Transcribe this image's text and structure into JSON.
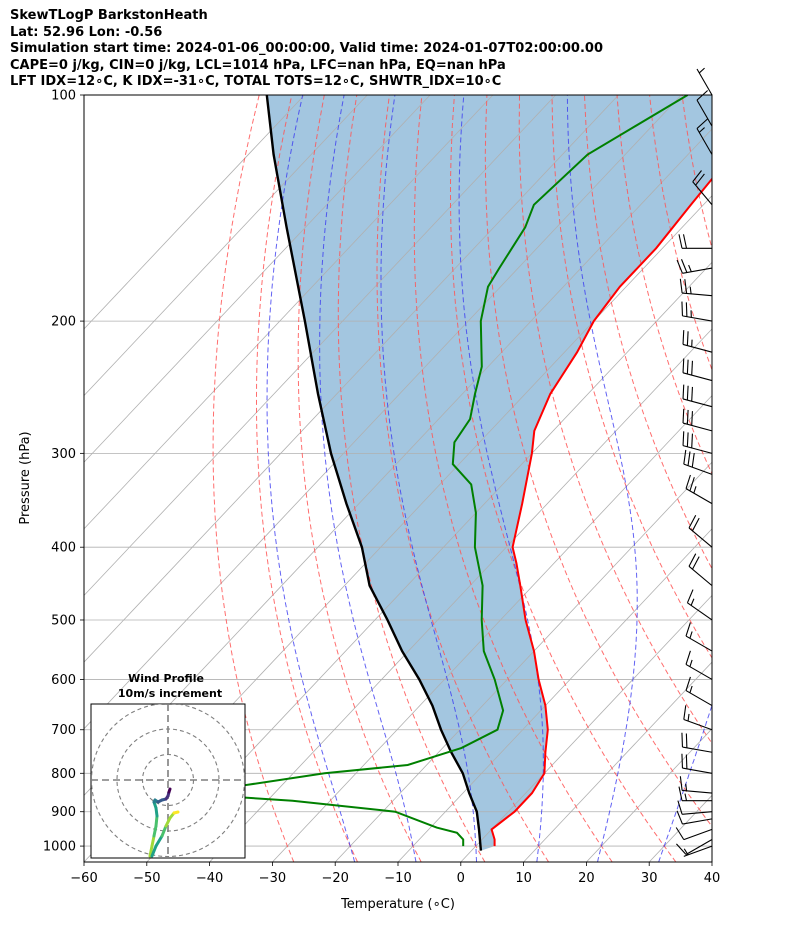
{
  "chart_data": {
    "type": "skewt-logp",
    "title_lines": [
      "SkewTLogP BarkstonHeath",
      "Lat: 52.96   Lon: -0.56",
      "Simulation start time: 2024-01-06_00:00:00, Valid time: 2024-01-07T02:00:00.00",
      "CAPE=0 j/kg, CIN=0 j/kg, LCL=1014 hPa, LFC=nan hPa, EQ=nan hPa",
      "LFT IDX=12∘C, K IDX=-31∘C, TOTAL TOTS=12∘C, SHWTR_IDX=10∘C"
    ],
    "xlabel": "Temperature (∘C)",
    "ylabel": "Pressure (hPa)",
    "xlim": [
      -60,
      40
    ],
    "ylim": [
      1050,
      100
    ],
    "x_ticks": [
      "−60",
      "−50",
      "−40",
      "−30",
      "−20",
      "−10",
      "0",
      "10",
      "20",
      "30",
      "40"
    ],
    "x_tick_values": [
      -60,
      -50,
      -40,
      -30,
      -20,
      -10,
      0,
      10,
      20,
      30,
      40
    ],
    "y_ticks": [
      "100",
      "200",
      "300",
      "400",
      "500",
      "600",
      "700",
      "800",
      "900",
      "1000"
    ],
    "y_tick_values": [
      100,
      200,
      300,
      400,
      500,
      600,
      700,
      800,
      900,
      1000
    ],
    "temperature": {
      "name": "Temperature",
      "color": "#ff0000",
      "points": [
        [
          1000,
          3
        ],
        [
          980,
          2
        ],
        [
          950,
          0
        ],
        [
          900,
          1
        ],
        [
          850,
          1
        ],
        [
          800,
          0
        ],
        [
          750,
          -3
        ],
        [
          700,
          -6
        ],
        [
          650,
          -10
        ],
        [
          600,
          -15
        ],
        [
          550,
          -20
        ],
        [
          500,
          -26
        ],
        [
          450,
          -32
        ],
        [
          420,
          -36
        ],
        [
          400,
          -39
        ],
        [
          350,
          -44
        ],
        [
          300,
          -50
        ],
        [
          280,
          -53
        ],
        [
          250,
          -56
        ],
        [
          220,
          -58
        ],
        [
          200,
          -60
        ],
        [
          180,
          -61
        ],
        [
          160,
          -61
        ],
        [
          140,
          -62
        ],
        [
          120,
          -63
        ],
        [
          110,
          -63
        ],
        [
          100,
          -62
        ]
      ]
    },
    "dewpoint": {
      "name": "Dewpoint",
      "color": "#008000",
      "points": [
        [
          1000,
          -2
        ],
        [
          980,
          -3
        ],
        [
          960,
          -5
        ],
        [
          945,
          -9
        ],
        [
          900,
          -18
        ],
        [
          870,
          -36
        ],
        [
          860,
          -46
        ],
        [
          830,
          -46
        ],
        [
          800,
          -35
        ],
        [
          780,
          -23
        ],
        [
          740,
          -17
        ],
        [
          700,
          -14
        ],
        [
          660,
          -16
        ],
        [
          600,
          -22
        ],
        [
          550,
          -28
        ],
        [
          500,
          -33
        ],
        [
          450,
          -38
        ],
        [
          400,
          -45
        ],
        [
          360,
          -50
        ],
        [
          330,
          -55
        ],
        [
          310,
          -61
        ],
        [
          290,
          -64
        ],
        [
          270,
          -65
        ],
        [
          250,
          -68
        ],
        [
          230,
          -71
        ],
        [
          200,
          -78
        ],
        [
          180,
          -82
        ],
        [
          170,
          -83
        ],
        [
          150,
          -85
        ],
        [
          140,
          -87
        ],
        [
          120,
          -86
        ],
        [
          100,
          -79
        ]
      ]
    },
    "parcel": {
      "name": "Parcel profile",
      "color": "#000000",
      "points": [
        [
          1014,
          1.5
        ],
        [
          950,
          -2
        ],
        [
          900,
          -5
        ],
        [
          850,
          -9
        ],
        [
          800,
          -13
        ],
        [
          750,
          -18
        ],
        [
          700,
          -23
        ],
        [
          650,
          -28
        ],
        [
          600,
          -34
        ],
        [
          550,
          -41
        ],
        [
          500,
          -48
        ],
        [
          450,
          -56
        ],
        [
          400,
          -63
        ],
        [
          350,
          -72
        ],
        [
          300,
          -82
        ],
        [
          250,
          -93
        ],
        [
          200,
          -106
        ],
        [
          150,
          -123
        ],
        [
          120,
          -136
        ],
        [
          100,
          -146
        ]
      ]
    },
    "cin_shading": {
      "name": "CIN area",
      "color": "#a3c6e0"
    },
    "dry_adiabats_theta_C": [
      -30,
      -20,
      -10,
      0,
      10,
      20,
      30,
      40,
      50,
      60,
      70,
      80,
      90,
      100,
      110,
      120,
      130,
      140,
      150,
      160,
      170,
      180,
      190,
      200,
      210,
      220
    ],
    "moist_adiabats_T0_C": [
      -20,
      -10,
      0,
      10,
      20,
      30,
      40
    ],
    "isotherms_C": [
      -140,
      -130,
      -120,
      -110,
      -100,
      -90,
      -80,
      -70,
      -60,
      -50,
      -40,
      -30,
      -20,
      -10,
      0,
      10,
      20,
      30,
      40
    ],
    "wind_barbs": {
      "units": "knots",
      "levels": [
        [
          1000,
          5,
          250
        ],
        [
          980,
          8,
          240
        ],
        [
          950,
          10,
          250
        ],
        [
          920,
          10,
          260
        ],
        [
          900,
          12,
          265
        ],
        [
          870,
          15,
          270
        ],
        [
          850,
          15,
          275
        ],
        [
          800,
          20,
          280
        ],
        [
          750,
          20,
          280
        ],
        [
          700,
          15,
          290
        ],
        [
          650,
          15,
          300
        ],
        [
          600,
          15,
          300
        ],
        [
          550,
          15,
          300
        ],
        [
          500,
          15,
          305
        ],
        [
          450,
          20,
          310
        ],
        [
          400,
          20,
          310
        ],
        [
          350,
          25,
          300
        ],
        [
          320,
          30,
          290
        ],
        [
          300,
          30,
          285
        ],
        [
          280,
          30,
          285
        ],
        [
          260,
          30,
          285
        ],
        [
          240,
          30,
          285
        ],
        [
          220,
          25,
          285
        ],
        [
          200,
          25,
          280
        ],
        [
          185,
          25,
          275
        ],
        [
          170,
          25,
          260
        ],
        [
          160,
          20,
          270
        ],
        [
          140,
          20,
          320
        ],
        [
          120,
          15,
          330
        ],
        [
          110,
          10,
          330
        ],
        [
          100,
          5,
          330
        ]
      ]
    },
    "wind_profile_inset": {
      "title": "Wind Profile",
      "subtitle": "10m/s increment",
      "ring_speeds_ms": [
        10,
        20,
        30
      ],
      "hodograph_uv_ms": [
        [
          -2,
          -34
        ],
        [
          -2,
          -30
        ],
        [
          -1.5,
          -25
        ],
        [
          -1,
          -20
        ],
        [
          -0.5,
          -15
        ],
        [
          0,
          -10
        ],
        [
          -0.5,
          -6
        ],
        [
          -1,
          -4
        ],
        [
          -0.5,
          -2
        ],
        [
          1,
          -3
        ],
        [
          1.5,
          -2.5
        ],
        [
          3,
          -3
        ],
        [
          3,
          -2
        ],
        [
          3.5,
          -1
        ]
      ]
    }
  }
}
